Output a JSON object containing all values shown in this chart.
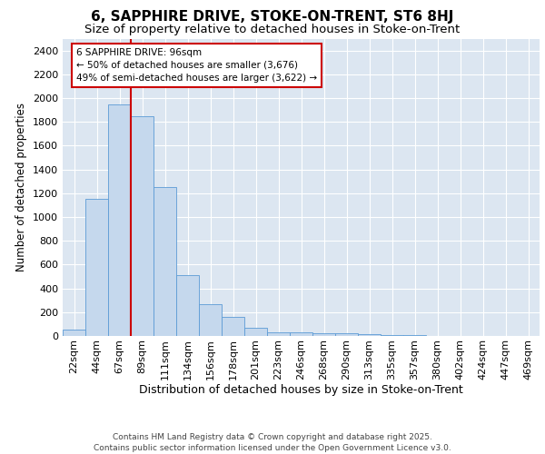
{
  "title": "6, SAPPHIRE DRIVE, STOKE-ON-TRENT, ST6 8HJ",
  "subtitle": "Size of property relative to detached houses in Stoke-on-Trent",
  "xlabel": "Distribution of detached houses by size in Stoke-on-Trent",
  "ylabel": "Number of detached properties",
  "categories": [
    "22sqm",
    "44sqm",
    "67sqm",
    "89sqm",
    "111sqm",
    "134sqm",
    "156sqm",
    "178sqm",
    "201sqm",
    "223sqm",
    "246sqm",
    "268sqm",
    "290sqm",
    "313sqm",
    "335sqm",
    "357sqm",
    "380sqm",
    "402sqm",
    "424sqm",
    "447sqm",
    "469sqm"
  ],
  "values": [
    50,
    1150,
    1950,
    1850,
    1250,
    510,
    270,
    160,
    70,
    30,
    30,
    25,
    20,
    15,
    5,
    5,
    3,
    2,
    1,
    1,
    1
  ],
  "bar_color": "#c5d8ed",
  "bar_edge_color": "#5b9bd5",
  "vline_index": 3,
  "annotation_text": "6 SAPPHIRE DRIVE: 96sqm\n← 50% of detached houses are smaller (3,676)\n49% of semi-detached houses are larger (3,622) →",
  "annotation_box_facecolor": "#ffffff",
  "annotation_box_edgecolor": "#cc0000",
  "vline_color": "#cc0000",
  "plot_background": "#dce6f1",
  "footer_line1": "Contains HM Land Registry data © Crown copyright and database right 2025.",
  "footer_line2": "Contains public sector information licensed under the Open Government Licence v3.0.",
  "ylim": [
    0,
    2500
  ],
  "yticks": [
    0,
    200,
    400,
    600,
    800,
    1000,
    1200,
    1400,
    1600,
    1800,
    2000,
    2200,
    2400
  ],
  "title_fontsize": 11,
  "subtitle_fontsize": 9.5,
  "xlabel_fontsize": 9,
  "ylabel_fontsize": 8.5,
  "tick_fontsize": 8,
  "annotation_fontsize": 7.5,
  "footer_fontsize": 6.5
}
